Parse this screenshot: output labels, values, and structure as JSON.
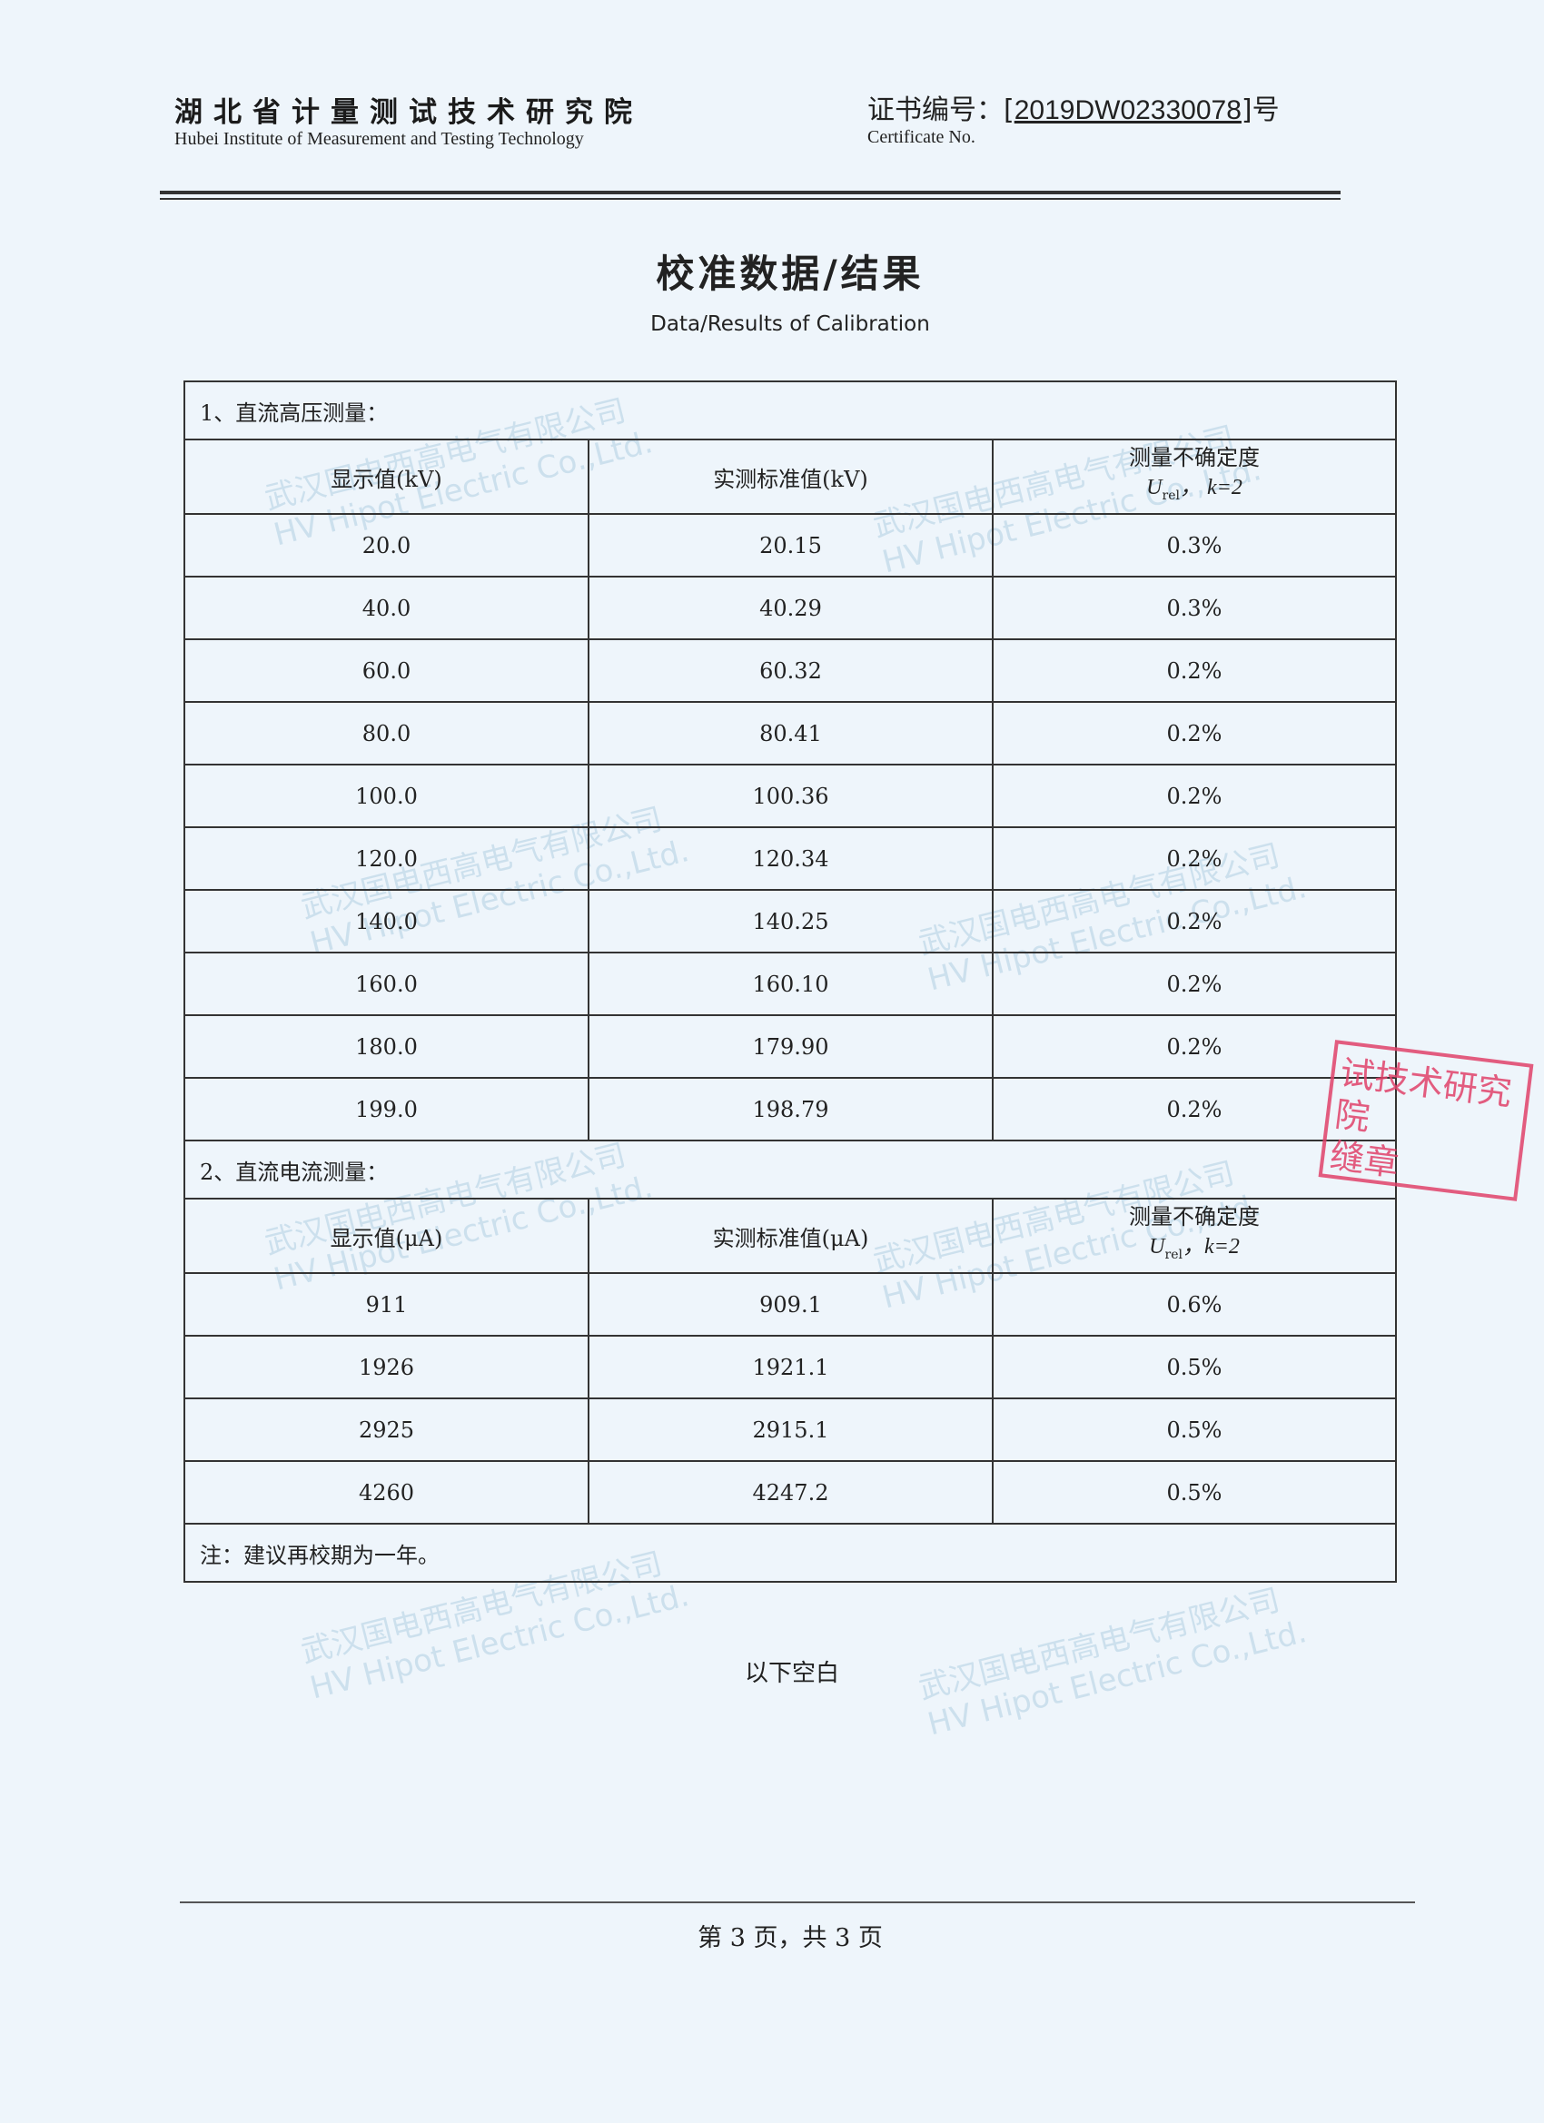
{
  "header": {
    "institute_cn": "湖北省计量测试技术研究院",
    "institute_en": "Hubei Institute of Measurement and Testing Technology",
    "cert_label": "证书编号：",
    "cert_number": "2019DW02330078",
    "cert_suffix": "号",
    "cert_label_en": "Certificate No."
  },
  "title": "校准数据/结果",
  "subtitle": "Data/Results of Calibration",
  "section1": {
    "title": "1、直流高压测量：",
    "headers": [
      "显示值(kV)",
      "实测标准值(kV)",
      "测量不确定度"
    ],
    "unc_symbol": "U",
    "unc_sub": "rel",
    "unc_k": "，  k=2",
    "rows": [
      [
        "20.0",
        "20.15",
        "0.3%"
      ],
      [
        "40.0",
        "40.29",
        "0.3%"
      ],
      [
        "60.0",
        "60.32",
        "0.2%"
      ],
      [
        "80.0",
        "80.41",
        "0.2%"
      ],
      [
        "100.0",
        "100.36",
        "0.2%"
      ],
      [
        "120.0",
        "120.34",
        "0.2%"
      ],
      [
        "140.0",
        "140.25",
        "0.2%"
      ],
      [
        "160.0",
        "160.10",
        "0.2%"
      ],
      [
        "180.0",
        "179.90",
        "0.2%"
      ],
      [
        "199.0",
        "198.79",
        "0.2%"
      ]
    ]
  },
  "section2": {
    "title": "2、直流电流测量：",
    "headers": [
      "显示值(μA)",
      "实测标准值(μA)",
      "测量不确定度"
    ],
    "unc_symbol": "U",
    "unc_sub": "rel",
    "unc_k": "，k=2",
    "rows": [
      [
        "911",
        "909.1",
        "0.6%"
      ],
      [
        "1926",
        "1921.1",
        "0.5%"
      ],
      [
        "2925",
        "2915.1",
        "0.5%"
      ],
      [
        "4260",
        "4247.2",
        "0.5%"
      ]
    ]
  },
  "note": "注：建议再校期为一年。",
  "blank_note": "以下空白",
  "footer": "第 3 页，共 3 页",
  "stamp": {
    "text": "试技术研究院 缝章",
    "color": "#e0426a"
  },
  "watermark": {
    "cn": "武汉国电西高电气有限公司",
    "en": "HV Hipot Electric Co.,Ltd."
  }
}
